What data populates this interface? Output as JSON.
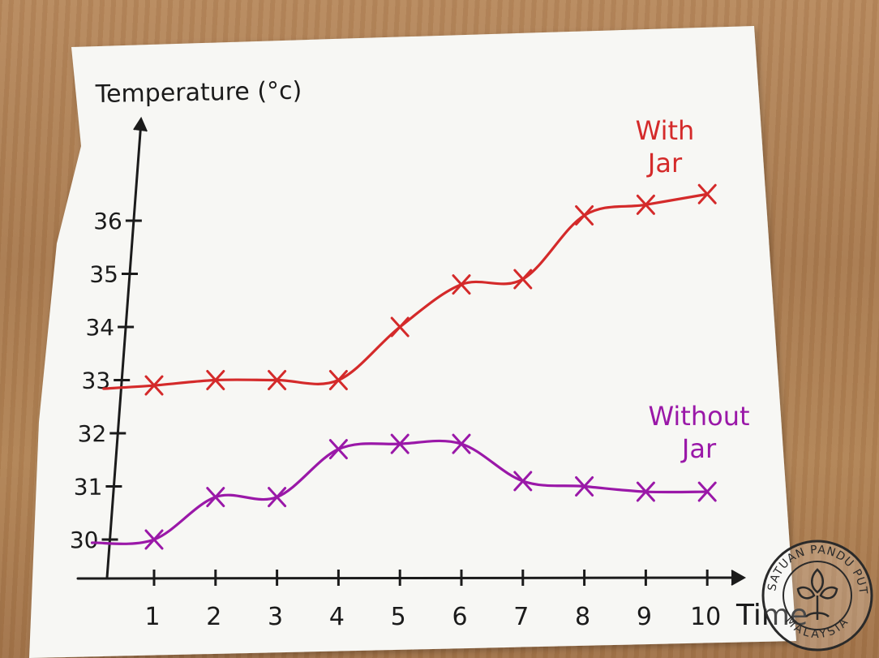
{
  "chart_data": {
    "type": "line",
    "ylabel": "Temperature (°c)",
    "xlabel": "Time",
    "x": [
      1,
      2,
      3,
      4,
      5,
      6,
      7,
      8,
      9,
      10
    ],
    "x_ticks": [
      "1",
      "2",
      "3",
      "4",
      "5",
      "6",
      "7",
      "8",
      "9",
      "10"
    ],
    "y_ticks": [
      "30",
      "31",
      "32",
      "33",
      "34",
      "35",
      "36"
    ],
    "ylim": [
      29.3,
      37.5
    ],
    "grid": false,
    "series": [
      {
        "name": "With Jar",
        "label_lines": [
          "With",
          "Jar"
        ],
        "color": "#d42a2a",
        "values": [
          32.9,
          33.0,
          33.0,
          33.0,
          34.0,
          34.8,
          34.9,
          36.1,
          36.3,
          36.5
        ]
      },
      {
        "name": "Without Jar",
        "label_lines": [
          "Without",
          "Jar"
        ],
        "color": "#9a18a8",
        "values": [
          30.0,
          30.8,
          30.8,
          31.7,
          31.8,
          31.8,
          31.1,
          31.0,
          30.9,
          30.9
        ]
      }
    ]
  },
  "watermark": {
    "text_top": "PERSATUAN PANDU PUTERI",
    "text_bottom": "MALAYSIA",
    "color": "#2a2a2a"
  }
}
